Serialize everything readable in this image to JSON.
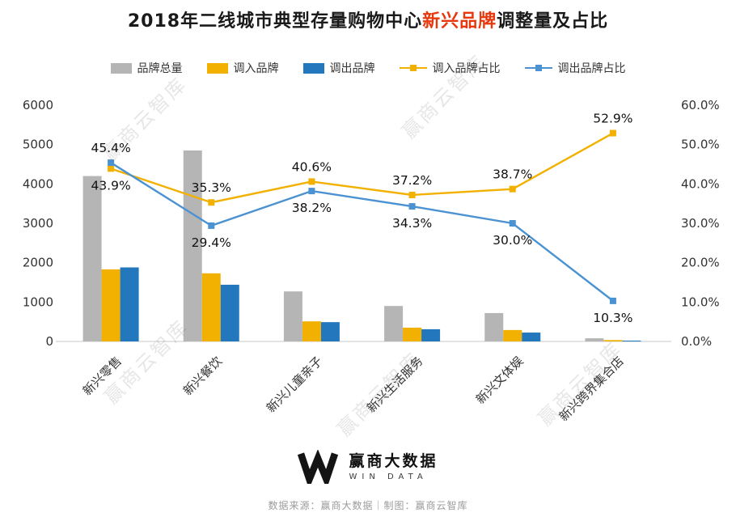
{
  "title": {
    "part1": "2018年二线城市典型存量购物中心",
    "highlight": "新兴品牌",
    "part2": "调整量及占比",
    "highlight_color": "#e8380d"
  },
  "legend": {
    "items": [
      {
        "label": "品牌总量",
        "type": "bar",
        "color": "#b5b5b5"
      },
      {
        "label": "调入品牌",
        "type": "bar",
        "color": "#f2b000"
      },
      {
        "label": "调出品牌",
        "type": "bar",
        "color": "#2377bd"
      },
      {
        "label": "调入品牌占比",
        "type": "line",
        "color": "#f2b000"
      },
      {
        "label": "调出品牌占比",
        "type": "line",
        "color": "#4b92d3"
      }
    ]
  },
  "chart_data": {
    "type": "combo: grouped bar (left axis) + line (right axis)",
    "categories": [
      "新兴零售",
      "新兴餐饮",
      "新兴儿童亲子",
      "新兴生活服务",
      "新兴文体娱",
      "新兴跨界集合店"
    ],
    "bar_series": [
      {
        "name": "品牌总量",
        "color": "#b5b5b5",
        "values": [
          4200,
          4850,
          1270,
          900,
          720,
          80
        ]
      },
      {
        "name": "调入品牌",
        "color": "#f2b000",
        "values": [
          1830,
          1730,
          510,
          350,
          290,
          35
        ]
      },
      {
        "name": "调出品牌",
        "color": "#2377bd",
        "values": [
          1880,
          1440,
          490,
          310,
          225,
          15
        ]
      }
    ],
    "line_series": [
      {
        "name": "调入品牌占比",
        "color": "#f2b000",
        "values": [
          43.9,
          35.3,
          40.6,
          37.2,
          38.7,
          52.9
        ],
        "labels": [
          "43.9%",
          "35.3%",
          "40.6%",
          "37.2%",
          "38.7%",
          "52.9%"
        ]
      },
      {
        "name": "调出品牌占比",
        "color": "#4b92d3",
        "values": [
          45.4,
          29.4,
          38.2,
          34.3,
          30.0,
          10.3
        ],
        "labels": [
          "45.4%",
          "29.4%",
          "38.2%",
          "34.3%",
          "30.0%",
          "10.3%"
        ]
      }
    ],
    "left_axis": {
      "min": 0,
      "max": 6000,
      "ticks": [
        "0",
        "1000",
        "2000",
        "3000",
        "4000",
        "5000",
        "6000"
      ]
    },
    "right_axis": {
      "min": 0,
      "max": 60,
      "ticks": [
        "0.0%",
        "10.0%",
        "20.0%",
        "30.0%",
        "40.0%",
        "50.0%",
        "60.0%"
      ]
    },
    "grid": false,
    "legend_position": "top"
  },
  "watermark": {
    "text": "赢商云智库"
  },
  "footer": {
    "brand_cn": "赢商大数据",
    "brand_en": "WIN DATA",
    "source": "数据来源：赢商大数据｜制图：赢商云智库"
  }
}
